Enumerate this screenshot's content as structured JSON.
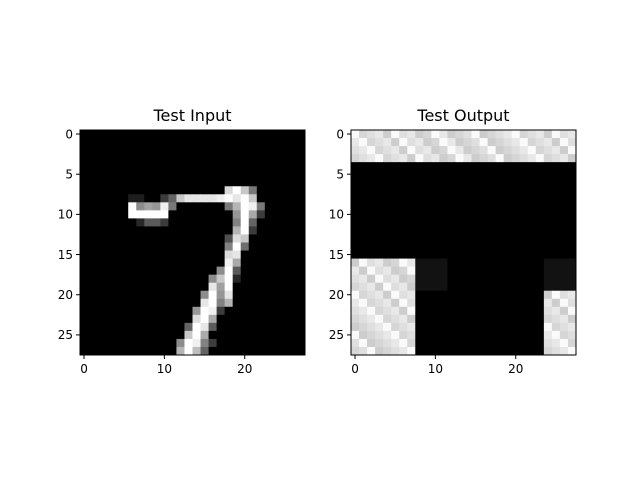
{
  "figure": {
    "background": "#ffffff",
    "colormap": "gray"
  },
  "chart_data": [
    {
      "type": "heatmap",
      "title": "Test Input",
      "xlabel": "",
      "ylabel": "",
      "xlim": [
        -0.5,
        27.5
      ],
      "ylim": [
        27.5,
        -0.5
      ],
      "x_ticks": [
        0,
        10,
        20
      ],
      "y_ticks": [
        0,
        5,
        10,
        15,
        20,
        25
      ],
      "grid": false,
      "legend": "none",
      "value_range": [
        0,
        255
      ],
      "sparse_pixels": [
        [
          7,
          18,
          217
        ],
        [
          7,
          19,
          255
        ],
        [
          7,
          20,
          200
        ],
        [
          7,
          21,
          120
        ],
        [
          8,
          6,
          30
        ],
        [
          8,
          7,
          30
        ],
        [
          8,
          10,
          60
        ],
        [
          8,
          11,
          100
        ],
        [
          8,
          12,
          200
        ],
        [
          8,
          13,
          230
        ],
        [
          8,
          14,
          230
        ],
        [
          8,
          15,
          230
        ],
        [
          8,
          16,
          230
        ],
        [
          8,
          17,
          240
        ],
        [
          8,
          18,
          255
        ],
        [
          8,
          19,
          230
        ],
        [
          8,
          20,
          255
        ],
        [
          8,
          21,
          200
        ],
        [
          9,
          6,
          255
        ],
        [
          9,
          7,
          140
        ],
        [
          9,
          8,
          160
        ],
        [
          9,
          9,
          150
        ],
        [
          9,
          10,
          240
        ],
        [
          9,
          11,
          120
        ],
        [
          9,
          18,
          120
        ],
        [
          9,
          19,
          180
        ],
        [
          9,
          20,
          255
        ],
        [
          9,
          21,
          240
        ],
        [
          9,
          22,
          120
        ],
        [
          10,
          6,
          255
        ],
        [
          10,
          7,
          255
        ],
        [
          10,
          8,
          255
        ],
        [
          10,
          9,
          255
        ],
        [
          10,
          10,
          255
        ],
        [
          10,
          19,
          150
        ],
        [
          10,
          20,
          255
        ],
        [
          10,
          21,
          170
        ],
        [
          10,
          22,
          60
        ],
        [
          11,
          7,
          40
        ],
        [
          11,
          8,
          90
        ],
        [
          11,
          9,
          90
        ],
        [
          11,
          10,
          60
        ],
        [
          11,
          19,
          130
        ],
        [
          11,
          20,
          255
        ],
        [
          11,
          21,
          100
        ],
        [
          12,
          19,
          180
        ],
        [
          12,
          20,
          255
        ],
        [
          12,
          21,
          60
        ],
        [
          13,
          18,
          80
        ],
        [
          13,
          19,
          220
        ],
        [
          13,
          20,
          200
        ],
        [
          14,
          18,
          130
        ],
        [
          14,
          19,
          255
        ],
        [
          14,
          20,
          110
        ],
        [
          15,
          18,
          220
        ],
        [
          15,
          19,
          230
        ],
        [
          16,
          18,
          240
        ],
        [
          16,
          19,
          170
        ],
        [
          17,
          17,
          140
        ],
        [
          17,
          18,
          255
        ],
        [
          17,
          19,
          90
        ],
        [
          18,
          16,
          140
        ],
        [
          18,
          17,
          200
        ],
        [
          18,
          18,
          255
        ],
        [
          18,
          19,
          40
        ],
        [
          19,
          16,
          230
        ],
        [
          19,
          17,
          160
        ],
        [
          19,
          18,
          255
        ],
        [
          20,
          15,
          140
        ],
        [
          20,
          16,
          255
        ],
        [
          20,
          17,
          150
        ],
        [
          20,
          18,
          230
        ],
        [
          21,
          15,
          230
        ],
        [
          21,
          16,
          255
        ],
        [
          21,
          17,
          130
        ],
        [
          21,
          18,
          180
        ],
        [
          22,
          14,
          150
        ],
        [
          22,
          15,
          255
        ],
        [
          22,
          16,
          240
        ],
        [
          22,
          17,
          60
        ],
        [
          23,
          14,
          220
        ],
        [
          23,
          15,
          255
        ],
        [
          23,
          16,
          170
        ],
        [
          24,
          13,
          100
        ],
        [
          24,
          14,
          255
        ],
        [
          24,
          15,
          230
        ],
        [
          24,
          16,
          90
        ],
        [
          25,
          13,
          200
        ],
        [
          25,
          14,
          255
        ],
        [
          25,
          15,
          170
        ],
        [
          26,
          12,
          140
        ],
        [
          26,
          13,
          255
        ],
        [
          26,
          14,
          240
        ],
        [
          26,
          15,
          130
        ],
        [
          26,
          16,
          60
        ],
        [
          27,
          12,
          180
        ],
        [
          27,
          13,
          255
        ],
        [
          27,
          14,
          190
        ],
        [
          27,
          15,
          100
        ]
      ]
    },
    {
      "type": "heatmap",
      "title": "Test Output",
      "xlabel": "",
      "ylabel": "",
      "xlim": [
        -0.5,
        27.5
      ],
      "ylim": [
        27.5,
        -0.5
      ],
      "x_ticks": [
        0,
        10,
        20
      ],
      "y_ticks": [
        0,
        5,
        10,
        15,
        20,
        25
      ],
      "grid": false,
      "legend": "none",
      "value_range": [
        0,
        255
      ],
      "blocks": [
        {
          "rows": [
            0,
            3
          ],
          "cols": [
            0,
            27
          ],
          "texture": true
        },
        {
          "rows": [
            16,
            27
          ],
          "cols": [
            0,
            7
          ],
          "texture": true
        },
        {
          "rows": [
            16,
            19
          ],
          "cols": [
            8,
            11
          ],
          "value": 18
        },
        {
          "rows": [
            16,
            19
          ],
          "cols": [
            24,
            27
          ],
          "value": 18
        },
        {
          "rows": [
            20,
            27
          ],
          "cols": [
            24,
            27
          ],
          "texture": true
        }
      ]
    }
  ]
}
